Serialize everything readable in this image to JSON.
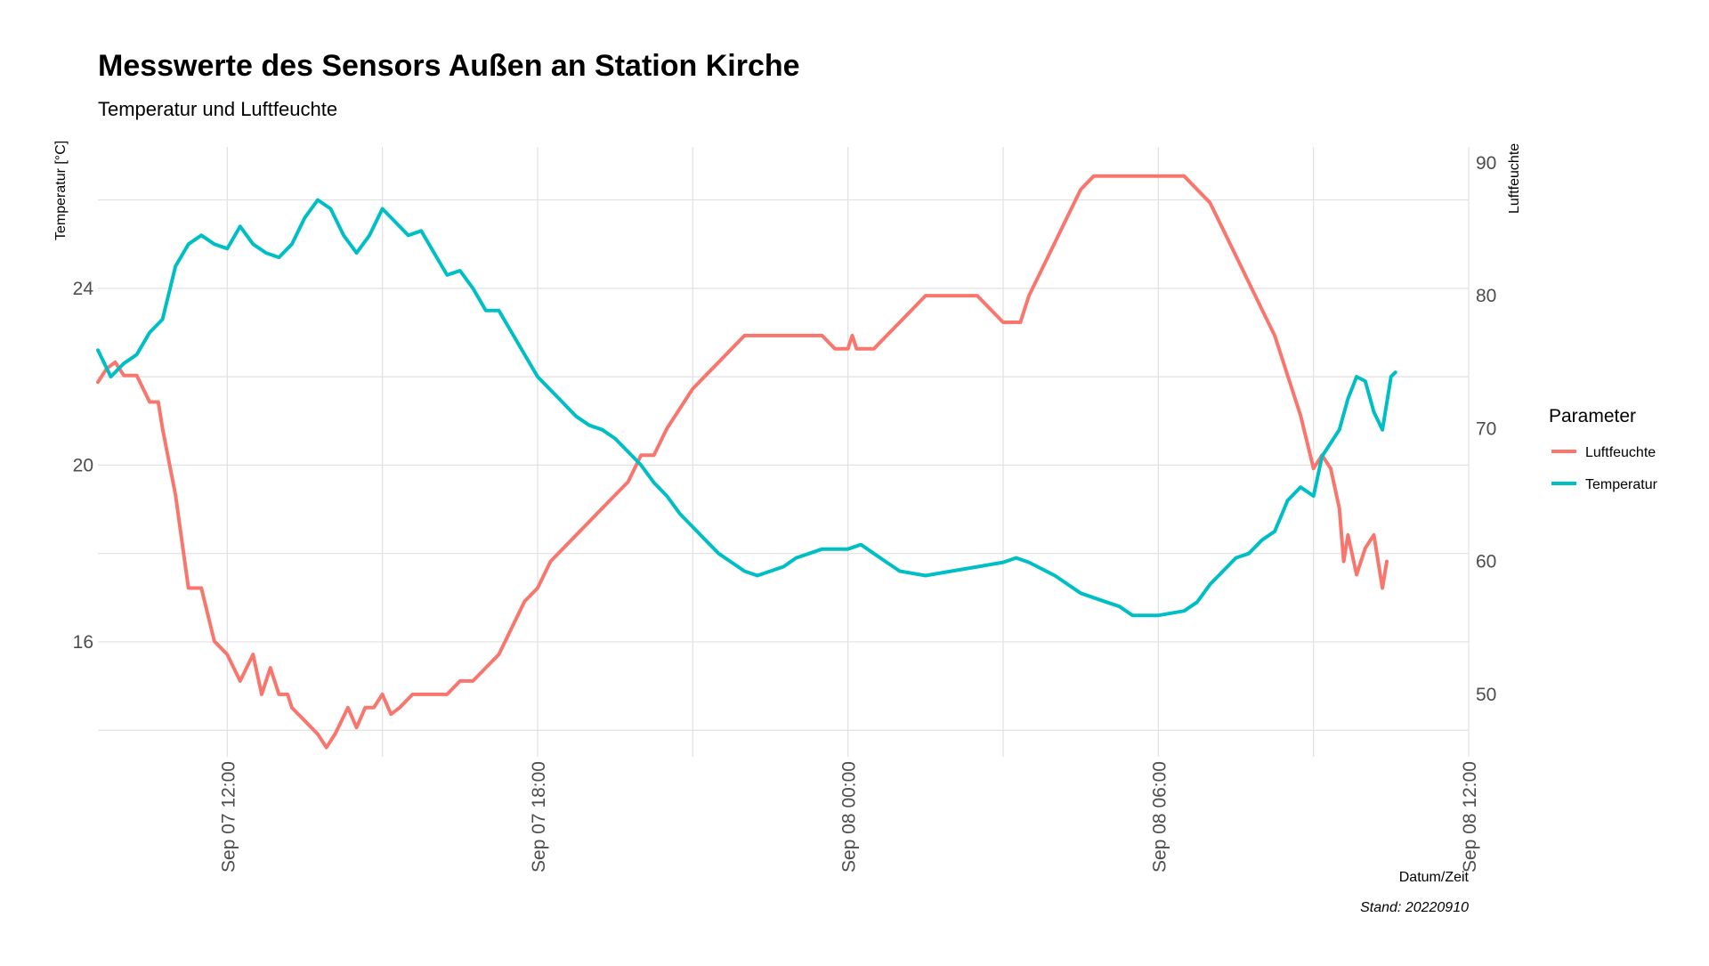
{
  "chart_data": {
    "type": "line",
    "title": "Messwerte des Sensors Außen an Station Kirche",
    "subtitle": "Temperatur und Luftfeuchte",
    "xlabel": "Datum/Zeit",
    "ylabel_left": "Temperatur [°C]",
    "ylabel_right": "Luftfeuchte",
    "caption": "Stand: 20220910",
    "x_range": [
      "2022-09-07T09:30",
      "2022-09-08T12:00"
    ],
    "ylim_left": [
      13.4,
      27.2
    ],
    "ylim_right": [
      45.3,
      91.2
    ],
    "y_ticks_left": [
      16,
      20,
      24
    ],
    "y_ticks_right": [
      50,
      60,
      70,
      80,
      90
    ],
    "x_ticks": [
      {
        "t": "2022-09-07T12:00",
        "label": "Sep 07 12:00"
      },
      {
        "t": "2022-09-07T18:00",
        "label": "Sep 07 18:00"
      },
      {
        "t": "2022-09-08T00:00",
        "label": "Sep 08 00:00"
      },
      {
        "t": "2022-09-08T06:00",
        "label": "Sep 08 06:00"
      },
      {
        "t": "2022-09-08T12:00",
        "label": "Sep 08 12:00"
      }
    ],
    "grid": true,
    "legend": {
      "title": "Parameter",
      "position": "right"
    },
    "series": [
      {
        "name": "Luftfeuchte",
        "axis": "right",
        "color": "#F8766D",
        "points": [
          [
            "2022-09-07T09:30",
            73.5
          ],
          [
            "2022-09-07T09:40",
            74.5
          ],
          [
            "2022-09-07T09:50",
            75
          ],
          [
            "2022-09-07T10:00",
            74
          ],
          [
            "2022-09-07T10:15",
            74
          ],
          [
            "2022-09-07T10:30",
            72
          ],
          [
            "2022-09-07T10:40",
            72
          ],
          [
            "2022-09-07T10:45",
            70
          ],
          [
            "2022-09-07T11:00",
            65
          ],
          [
            "2022-09-07T11:15",
            58
          ],
          [
            "2022-09-07T11:30",
            58
          ],
          [
            "2022-09-07T11:45",
            54
          ],
          [
            "2022-09-07T12:00",
            53
          ],
          [
            "2022-09-07T12:15",
            51
          ],
          [
            "2022-09-07T12:30",
            53
          ],
          [
            "2022-09-07T12:40",
            50
          ],
          [
            "2022-09-07T12:50",
            52
          ],
          [
            "2022-09-07T13:00",
            50
          ],
          [
            "2022-09-07T13:10",
            50
          ],
          [
            "2022-09-07T13:15",
            49
          ],
          [
            "2022-09-07T13:30",
            48
          ],
          [
            "2022-09-07T13:45",
            47
          ],
          [
            "2022-09-07T13:55",
            46
          ],
          [
            "2022-09-07T14:05",
            47
          ],
          [
            "2022-09-07T14:20",
            49
          ],
          [
            "2022-09-07T14:30",
            47.5
          ],
          [
            "2022-09-07T14:40",
            49
          ],
          [
            "2022-09-07T14:50",
            49
          ],
          [
            "2022-09-07T15:00",
            50
          ],
          [
            "2022-09-07T15:10",
            48.5
          ],
          [
            "2022-09-07T15:20",
            49
          ],
          [
            "2022-09-07T15:35",
            50
          ],
          [
            "2022-09-07T16:15",
            50
          ],
          [
            "2022-09-07T16:30",
            51
          ],
          [
            "2022-09-07T16:45",
            51
          ],
          [
            "2022-09-07T17:00",
            52
          ],
          [
            "2022-09-07T17:15",
            53
          ],
          [
            "2022-09-07T17:30",
            55
          ],
          [
            "2022-09-07T17:45",
            57
          ],
          [
            "2022-09-07T18:00",
            58
          ],
          [
            "2022-09-07T18:15",
            60
          ],
          [
            "2022-09-07T18:30",
            61
          ],
          [
            "2022-09-07T18:45",
            62
          ],
          [
            "2022-09-07T19:00",
            63
          ],
          [
            "2022-09-07T19:15",
            64
          ],
          [
            "2022-09-07T19:30",
            65
          ],
          [
            "2022-09-07T19:45",
            66
          ],
          [
            "2022-09-07T20:00",
            68
          ],
          [
            "2022-09-07T20:15",
            68
          ],
          [
            "2022-09-07T20:30",
            70
          ],
          [
            "2022-09-07T20:40",
            71
          ],
          [
            "2022-09-07T20:50",
            72
          ],
          [
            "2022-09-07T21:00",
            73
          ],
          [
            "2022-09-07T21:15",
            74
          ],
          [
            "2022-09-07T21:30",
            75
          ],
          [
            "2022-09-07T21:45",
            76
          ],
          [
            "2022-09-07T22:00",
            77
          ],
          [
            "2022-09-07T23:30",
            77
          ],
          [
            "2022-09-07T23:45",
            76
          ],
          [
            "2022-09-08T00:00",
            76
          ],
          [
            "2022-09-08T00:05",
            77
          ],
          [
            "2022-09-08T00:10",
            76
          ],
          [
            "2022-09-08T00:30",
            76
          ],
          [
            "2022-09-08T00:45",
            77
          ],
          [
            "2022-09-08T01:00",
            78
          ],
          [
            "2022-09-08T01:15",
            79
          ],
          [
            "2022-09-08T01:30",
            80
          ],
          [
            "2022-09-08T02:30",
            80
          ],
          [
            "2022-09-08T02:45",
            79
          ],
          [
            "2022-09-08T03:00",
            78
          ],
          [
            "2022-09-08T03:20",
            78
          ],
          [
            "2022-09-08T03:30",
            80
          ],
          [
            "2022-09-08T03:45",
            82
          ],
          [
            "2022-09-08T04:00",
            84
          ],
          [
            "2022-09-08T04:15",
            86
          ],
          [
            "2022-09-08T04:30",
            88
          ],
          [
            "2022-09-08T04:45",
            89
          ],
          [
            "2022-09-08T06:30",
            89
          ],
          [
            "2022-09-08T06:45",
            88
          ],
          [
            "2022-09-08T07:00",
            87
          ],
          [
            "2022-09-08T07:15",
            85
          ],
          [
            "2022-09-08T07:30",
            83
          ],
          [
            "2022-09-08T07:45",
            81
          ],
          [
            "2022-09-08T08:00",
            79
          ],
          [
            "2022-09-08T08:15",
            77
          ],
          [
            "2022-09-08T08:30",
            74
          ],
          [
            "2022-09-08T08:45",
            71
          ],
          [
            "2022-09-08T09:00",
            67
          ],
          [
            "2022-09-08T09:10",
            68
          ],
          [
            "2022-09-08T09:20",
            67
          ],
          [
            "2022-09-08T09:30",
            64
          ],
          [
            "2022-09-08T09:35",
            60
          ],
          [
            "2022-09-08T09:40",
            62
          ],
          [
            "2022-09-08T09:50",
            59
          ],
          [
            "2022-09-08T10:00",
            61
          ],
          [
            "2022-09-08T10:10",
            62
          ],
          [
            "2022-09-08T10:20",
            58
          ],
          [
            "2022-09-08T10:25",
            60
          ]
        ]
      },
      {
        "name": "Temperatur",
        "axis": "left",
        "color": "#00BFC4",
        "points": [
          [
            "2022-09-07T09:30",
            22.6
          ],
          [
            "2022-09-07T09:45",
            22
          ],
          [
            "2022-09-07T10:00",
            22.3
          ],
          [
            "2022-09-07T10:15",
            22.5
          ],
          [
            "2022-09-07T10:30",
            23
          ],
          [
            "2022-09-07T10:45",
            23.3
          ],
          [
            "2022-09-07T11:00",
            24.5
          ],
          [
            "2022-09-07T11:15",
            25
          ],
          [
            "2022-09-07T11:30",
            25.2
          ],
          [
            "2022-09-07T11:45",
            25
          ],
          [
            "2022-09-07T12:00",
            24.9
          ],
          [
            "2022-09-07T12:15",
            25.4
          ],
          [
            "2022-09-07T12:30",
            25
          ],
          [
            "2022-09-07T12:45",
            24.8
          ],
          [
            "2022-09-07T13:00",
            24.7
          ],
          [
            "2022-09-07T13:15",
            25
          ],
          [
            "2022-09-07T13:30",
            25.6
          ],
          [
            "2022-09-07T13:45",
            26
          ],
          [
            "2022-09-07T14:00",
            25.8
          ],
          [
            "2022-09-07T14:15",
            25.2
          ],
          [
            "2022-09-07T14:30",
            24.8
          ],
          [
            "2022-09-07T14:45",
            25.2
          ],
          [
            "2022-09-07T15:00",
            25.8
          ],
          [
            "2022-09-07T15:15",
            25.5
          ],
          [
            "2022-09-07T15:30",
            25.2
          ],
          [
            "2022-09-07T15:45",
            25.3
          ],
          [
            "2022-09-07T16:00",
            24.8
          ],
          [
            "2022-09-07T16:15",
            24.3
          ],
          [
            "2022-09-07T16:30",
            24.4
          ],
          [
            "2022-09-07T16:45",
            24
          ],
          [
            "2022-09-07T17:00",
            23.5
          ],
          [
            "2022-09-07T17:15",
            23.5
          ],
          [
            "2022-09-07T17:30",
            23
          ],
          [
            "2022-09-07T17:45",
            22.5
          ],
          [
            "2022-09-07T18:00",
            22
          ],
          [
            "2022-09-07T18:15",
            21.7
          ],
          [
            "2022-09-07T18:30",
            21.4
          ],
          [
            "2022-09-07T18:45",
            21.1
          ],
          [
            "2022-09-07T19:00",
            20.9
          ],
          [
            "2022-09-07T19:15",
            20.8
          ],
          [
            "2022-09-07T19:30",
            20.6
          ],
          [
            "2022-09-07T19:45",
            20.3
          ],
          [
            "2022-09-07T20:00",
            20
          ],
          [
            "2022-09-07T20:15",
            19.6
          ],
          [
            "2022-09-07T20:30",
            19.3
          ],
          [
            "2022-09-07T20:45",
            18.9
          ],
          [
            "2022-09-07T21:00",
            18.6
          ],
          [
            "2022-09-07T21:15",
            18.3
          ],
          [
            "2022-09-07T21:30",
            18
          ],
          [
            "2022-09-07T21:45",
            17.8
          ],
          [
            "2022-09-07T22:00",
            17.6
          ],
          [
            "2022-09-07T22:15",
            17.5
          ],
          [
            "2022-09-07T22:30",
            17.6
          ],
          [
            "2022-09-07T22:45",
            17.7
          ],
          [
            "2022-09-07T23:00",
            17.9
          ],
          [
            "2022-09-07T23:15",
            18
          ],
          [
            "2022-09-07T23:30",
            18.1
          ],
          [
            "2022-09-08T00:00",
            18.1
          ],
          [
            "2022-09-08T00:15",
            18.2
          ],
          [
            "2022-09-08T00:30",
            18
          ],
          [
            "2022-09-08T00:45",
            17.8
          ],
          [
            "2022-09-08T01:00",
            17.6
          ],
          [
            "2022-09-08T01:30",
            17.5
          ],
          [
            "2022-09-08T02:00",
            17.6
          ],
          [
            "2022-09-08T02:30",
            17.7
          ],
          [
            "2022-09-08T03:00",
            17.8
          ],
          [
            "2022-09-08T03:15",
            17.9
          ],
          [
            "2022-09-08T03:30",
            17.8
          ],
          [
            "2022-09-08T04:00",
            17.5
          ],
          [
            "2022-09-08T04:30",
            17.1
          ],
          [
            "2022-09-08T05:00",
            16.9
          ],
          [
            "2022-09-08T05:15",
            16.8
          ],
          [
            "2022-09-08T05:30",
            16.6
          ],
          [
            "2022-09-08T06:00",
            16.6
          ],
          [
            "2022-09-08T06:30",
            16.7
          ],
          [
            "2022-09-08T06:45",
            16.9
          ],
          [
            "2022-09-08T07:00",
            17.3
          ],
          [
            "2022-09-08T07:15",
            17.6
          ],
          [
            "2022-09-08T07:30",
            17.9
          ],
          [
            "2022-09-08T07:45",
            18
          ],
          [
            "2022-09-08T08:00",
            18.3
          ],
          [
            "2022-09-08T08:15",
            18.5
          ],
          [
            "2022-09-08T08:30",
            19.2
          ],
          [
            "2022-09-08T08:45",
            19.5
          ],
          [
            "2022-09-08T09:00",
            19.3
          ],
          [
            "2022-09-08T09:10",
            20.2
          ],
          [
            "2022-09-08T09:20",
            20.5
          ],
          [
            "2022-09-08T09:30",
            20.8
          ],
          [
            "2022-09-08T09:40",
            21.5
          ],
          [
            "2022-09-08T09:50",
            22
          ],
          [
            "2022-09-08T10:00",
            21.9
          ],
          [
            "2022-09-08T10:10",
            21.2
          ],
          [
            "2022-09-08T10:20",
            20.8
          ],
          [
            "2022-09-08T10:30",
            22
          ],
          [
            "2022-09-08T10:35",
            22.1
          ]
        ]
      }
    ]
  }
}
